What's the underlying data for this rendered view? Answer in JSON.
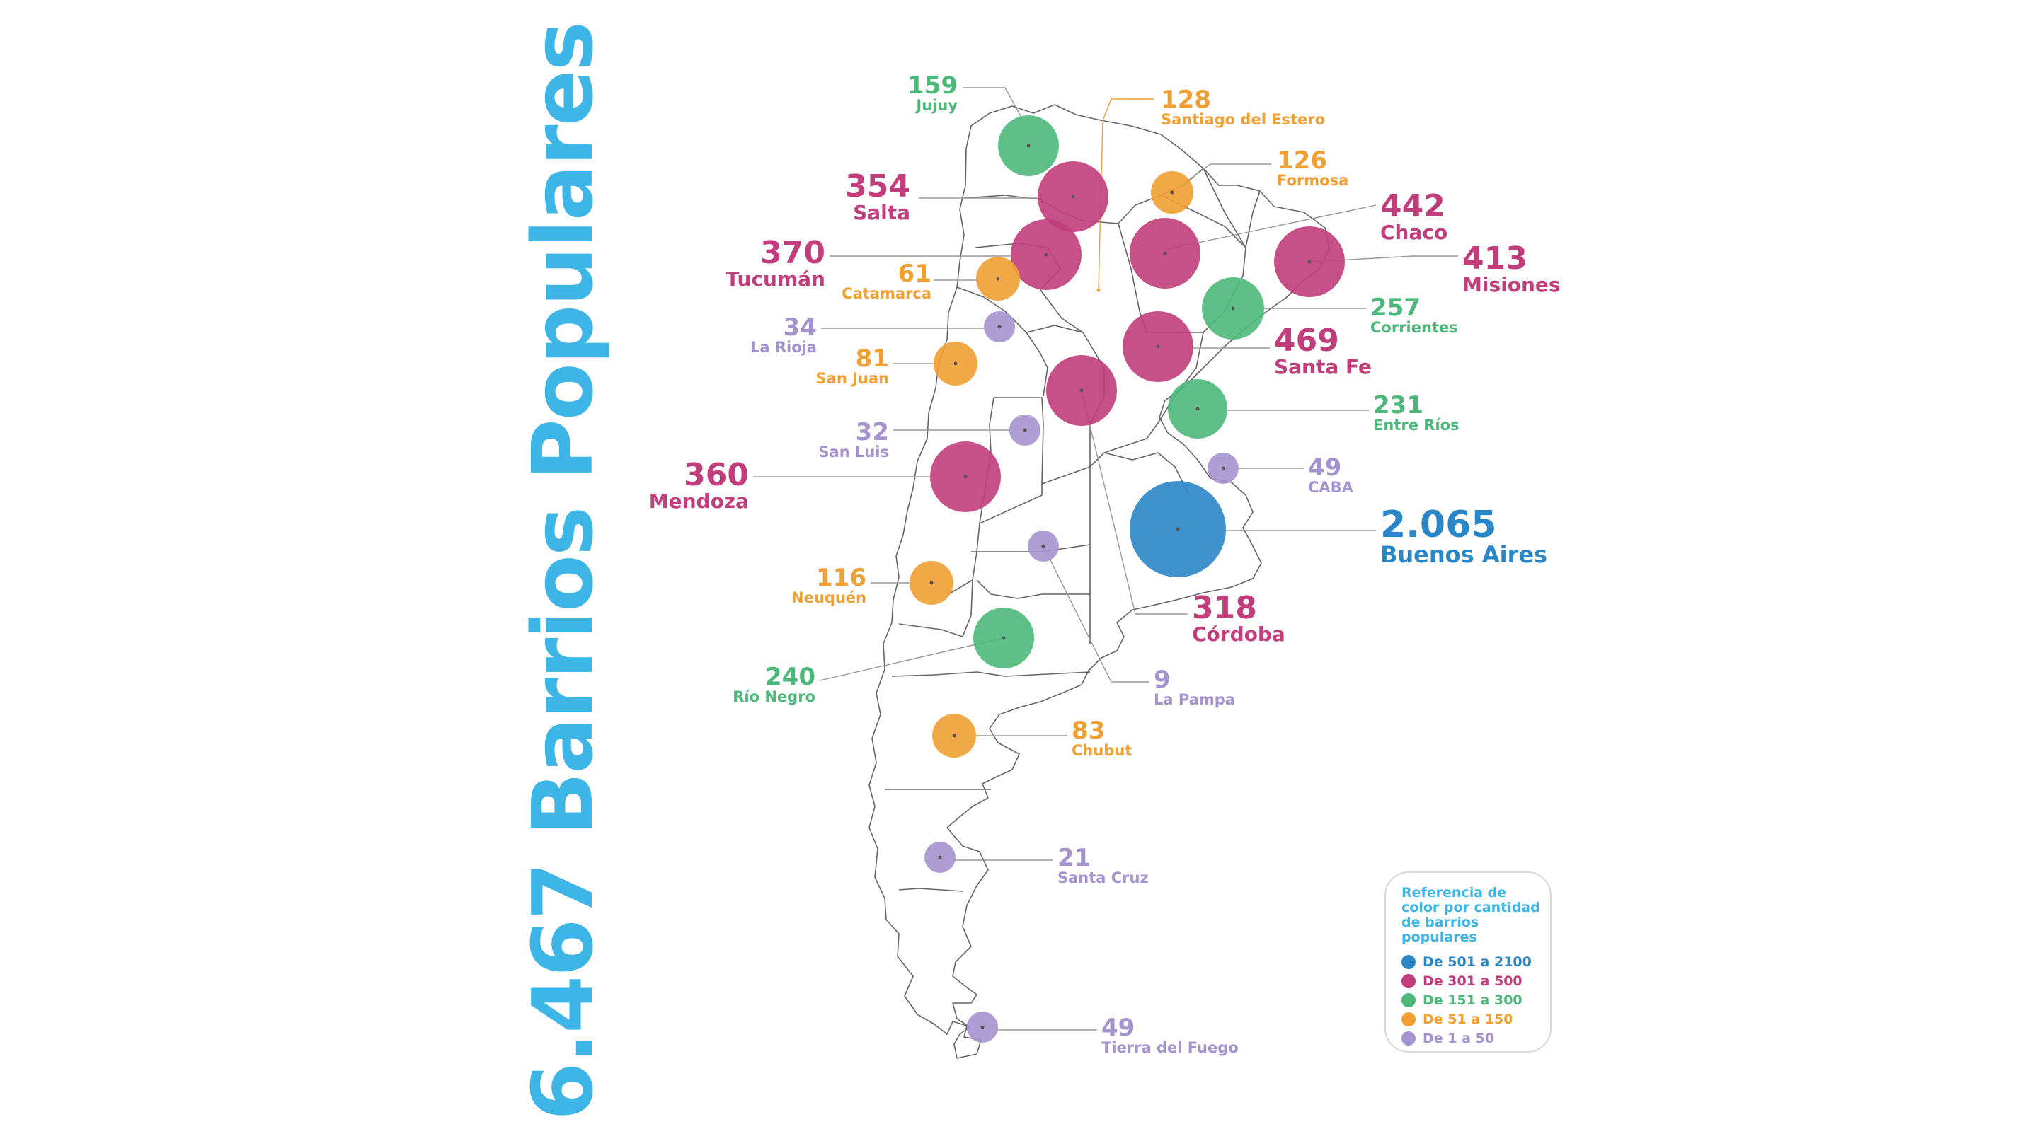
{
  "title": "6.467 Barrios Populares",
  "colors": {
    "title": "#3db5e6",
    "tier1": "#2b86c8",
    "tier2": "#c13d7c",
    "tier3": "#4cb97a",
    "tier4": "#f0a033",
    "tier5": "#a593cf",
    "border": "#666666",
    "leader": "#9a9a9a"
  },
  "legend": {
    "title": "Referencia de color por cantidad de barrios populares",
    "items": [
      {
        "label": "De 501 a 2100",
        "tier": "tier1"
      },
      {
        "label": "De 301 a 500",
        "tier": "tier2"
      },
      {
        "label": "De 151 a 300",
        "tier": "tier3"
      },
      {
        "label": "De 51 a 150",
        "tier": "tier4"
      },
      {
        "label": "De 1 a 50",
        "tier": "tier5"
      }
    ]
  },
  "provinces": [
    {
      "name": "Jujuy",
      "value": "159",
      "count": 159,
      "tier": "tier3"
    },
    {
      "name": "Santiago del Estero",
      "value": "128",
      "count": 128,
      "tier": "tier4"
    },
    {
      "name": "Salta",
      "value": "354",
      "count": 354,
      "tier": "tier2"
    },
    {
      "name": "Formosa",
      "value": "126",
      "count": 126,
      "tier": "tier4"
    },
    {
      "name": "Chaco",
      "value": "442",
      "count": 442,
      "tier": "tier2"
    },
    {
      "name": "Tucumán",
      "value": "370",
      "count": 370,
      "tier": "tier2"
    },
    {
      "name": "Catamarca",
      "value": "61",
      "count": 61,
      "tier": "tier4"
    },
    {
      "name": "Misiones",
      "value": "413",
      "count": 413,
      "tier": "tier2"
    },
    {
      "name": "La Rioja",
      "value": "34",
      "count": 34,
      "tier": "tier5"
    },
    {
      "name": "Corrientes",
      "value": "257",
      "count": 257,
      "tier": "tier3"
    },
    {
      "name": "San Juan",
      "value": "81",
      "count": 81,
      "tier": "tier4"
    },
    {
      "name": "Santa Fe",
      "value": "469",
      "count": 469,
      "tier": "tier2"
    },
    {
      "name": "San Luis",
      "value": "32",
      "count": 32,
      "tier": "tier5"
    },
    {
      "name": "Entre Ríos",
      "value": "231",
      "count": 231,
      "tier": "tier3"
    },
    {
      "name": "Mendoza",
      "value": "360",
      "count": 360,
      "tier": "tier2"
    },
    {
      "name": "CABA",
      "value": "49",
      "count": 49,
      "tier": "tier5"
    },
    {
      "name": "Buenos Aires",
      "value": "2.065",
      "count": 2065,
      "tier": "tier1"
    },
    {
      "name": "Neuquén",
      "value": "116",
      "count": 116,
      "tier": "tier4"
    },
    {
      "name": "Córdoba",
      "value": "318",
      "count": 318,
      "tier": "tier2"
    },
    {
      "name": "Río Negro",
      "value": "240",
      "count": 240,
      "tier": "tier3"
    },
    {
      "name": "La Pampa",
      "value": "9",
      "count": 9,
      "tier": "tier5"
    },
    {
      "name": "Chubut",
      "value": "83",
      "count": 83,
      "tier": "tier4"
    },
    {
      "name": "Santa Cruz",
      "value": "21",
      "count": 21,
      "tier": "tier5"
    },
    {
      "name": "Tierra del Fuego",
      "value": "49",
      "count": 49,
      "tier": "tier5"
    }
  ]
}
